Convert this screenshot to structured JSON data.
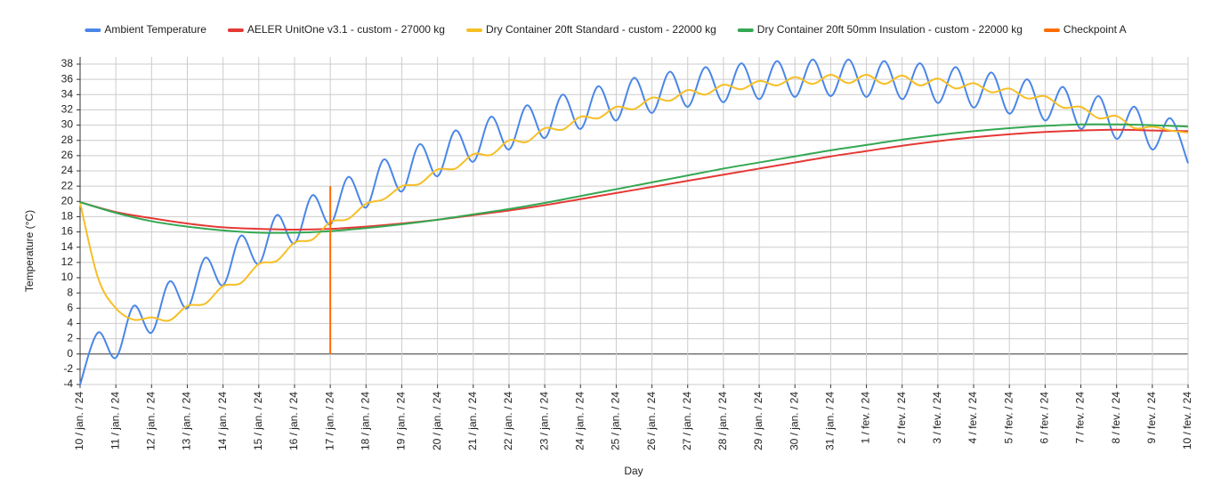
{
  "chart_data": {
    "type": "line",
    "x_label": "Day",
    "y_label": "Temperature (°C)",
    "xlim": [
      0,
      31
    ],
    "ylim": [
      -4,
      38
    ],
    "yticks": [
      -4,
      -2,
      0,
      2,
      4,
      6,
      8,
      10,
      12,
      14,
      16,
      18,
      20,
      22,
      24,
      26,
      28,
      30,
      32,
      34,
      36,
      38
    ],
    "xticks": [
      {
        "value": 0,
        "label": "10 / jan. / 24"
      },
      {
        "value": 1,
        "label": "11 / jan. / 24"
      },
      {
        "value": 2,
        "label": "12 / jan. / 24"
      },
      {
        "value": 3,
        "label": "13 / jan. / 24"
      },
      {
        "value": 4,
        "label": "14 / jan. / 24"
      },
      {
        "value": 5,
        "label": "15 / jan. / 24"
      },
      {
        "value": 6,
        "label": "16 / jan. / 24"
      },
      {
        "value": 7,
        "label": "17 / jan. / 24"
      },
      {
        "value": 8,
        "label": "18 / jan. / 24"
      },
      {
        "value": 9,
        "label": "19 / jan. / 24"
      },
      {
        "value": 10,
        "label": "20 / jan. / 24"
      },
      {
        "value": 11,
        "label": "21 / jan. / 24"
      },
      {
        "value": 12,
        "label": "22 / jan. / 24"
      },
      {
        "value": 13,
        "label": "23 / jan. / 24"
      },
      {
        "value": 14,
        "label": "24 / jan. / 24"
      },
      {
        "value": 15,
        "label": "25 / jan. / 24"
      },
      {
        "value": 16,
        "label": "26 / jan. / 24"
      },
      {
        "value": 17,
        "label": "27 / jan. / 24"
      },
      {
        "value": 18,
        "label": "28 / jan. / 24"
      },
      {
        "value": 19,
        "label": "29 / jan. / 24"
      },
      {
        "value": 20,
        "label": "30 / jan. / 24"
      },
      {
        "value": 21,
        "label": "31 / jan. / 24"
      },
      {
        "value": 22,
        "label": "1 / fev. / 24"
      },
      {
        "value": 23,
        "label": "2 / fev. / 24"
      },
      {
        "value": 24,
        "label": "3 / fev. / 24"
      },
      {
        "value": 25,
        "label": "4 / fev. / 24"
      },
      {
        "value": 26,
        "label": "5 / fev. / 24"
      },
      {
        "value": 27,
        "label": "6 / fev. / 24"
      },
      {
        "value": 28,
        "label": "7 / fev. / 24"
      },
      {
        "value": 29,
        "label": "8 / fev. / 24"
      },
      {
        "value": 30,
        "label": "9 / fev. / 24"
      },
      {
        "value": 31,
        "label": "10 / fev. / 24"
      }
    ],
    "grid": true,
    "legend": "top",
    "series": [
      {
        "name": "Ambient Temperature",
        "color": "#4a86e8",
        "x": [
          0,
          0.5,
          1,
          1.5,
          2,
          2.5,
          3,
          3.5,
          4,
          4.5,
          5,
          5.5,
          6,
          6.5,
          7,
          7.5,
          8,
          8.5,
          9,
          9.5,
          10,
          10.5,
          11,
          11.5,
          12,
          12.5,
          13,
          13.5,
          14,
          14.5,
          15,
          15.5,
          16,
          16.5,
          17,
          17.5,
          18,
          18.5,
          19,
          19.5,
          20,
          20.5,
          21,
          21.5,
          22,
          22.5,
          23,
          23.5,
          24,
          24.5,
          25,
          25.5,
          26,
          26.5,
          27,
          27.5,
          28,
          28.5,
          29,
          29.5,
          30,
          30.5,
          31
        ],
        "values": [
          -4,
          2.8,
          -0.5,
          6.3,
          2.8,
          9.5,
          6,
          12.6,
          9,
          15.5,
          11.8,
          18.2,
          14.5,
          20.8,
          17,
          23.2,
          19.2,
          25.5,
          21.3,
          27.5,
          23.3,
          29.3,
          25.2,
          31.1,
          26.8,
          32.6,
          28.3,
          34,
          29.5,
          35.1,
          30.6,
          36.2,
          31.6,
          37,
          32.4,
          37.6,
          33,
          38.1,
          33.4,
          38.4,
          33.7,
          38.6,
          33.8,
          38.6,
          33.7,
          38.4,
          33.4,
          38.1,
          32.9,
          37.6,
          32.3,
          36.9,
          31.5,
          36,
          30.6,
          35,
          29.5,
          33.8,
          28.2,
          32.4,
          26.8,
          30.9,
          25
        ]
      },
      {
        "name": "AELER UnitOne v3.1 - custom - 27000 kg",
        "color": "#e53935",
        "x": [
          0,
          1,
          2,
          3,
          4,
          5,
          6,
          7,
          8,
          9,
          10,
          11,
          12,
          13,
          14,
          15,
          16,
          17,
          18,
          19,
          20,
          21,
          22,
          23,
          24,
          25,
          26,
          27,
          28,
          29,
          30,
          31
        ],
        "values": [
          19.9,
          18.6,
          17.8,
          17.1,
          16.6,
          16.4,
          16.3,
          16.4,
          16.7,
          17.1,
          17.6,
          18.2,
          18.8,
          19.5,
          20.3,
          21.1,
          21.9,
          22.7,
          23.5,
          24.3,
          25.1,
          25.9,
          26.6,
          27.3,
          27.9,
          28.4,
          28.8,
          29.1,
          29.3,
          29.4,
          29.3,
          29.2
        ]
      },
      {
        "name": "Dry Container 20ft Standard - custom - 22000 kg",
        "color": "#f6bf26",
        "x": [
          0,
          0.5,
          1,
          1.5,
          2,
          2.5,
          3,
          3.5,
          4,
          4.5,
          5,
          5.5,
          6,
          6.5,
          7,
          7.5,
          8,
          8.5,
          9,
          9.5,
          10,
          10.5,
          11,
          11.5,
          12,
          12.5,
          13,
          13.5,
          14,
          14.5,
          15,
          15.5,
          16,
          16.5,
          17,
          17.5,
          18,
          18.5,
          19,
          19.5,
          20,
          20.5,
          21,
          21.5,
          22,
          22.5,
          23,
          23.5,
          24,
          24.5,
          25,
          25.5,
          26,
          26.5,
          27,
          27.5,
          28,
          28.5,
          29,
          29.5,
          30,
          30.5,
          31
        ],
        "values": [
          19.8,
          10,
          6,
          4.5,
          4.8,
          4.4,
          6.3,
          6.6,
          8.9,
          9.3,
          11.8,
          12.2,
          14.6,
          15,
          17.3,
          17.7,
          19.7,
          20.3,
          22,
          22.3,
          24.2,
          24.3,
          26.2,
          26.1,
          28,
          27.8,
          29.6,
          29.4,
          31.1,
          30.9,
          32.4,
          32.1,
          33.6,
          33.2,
          34.6,
          34,
          35.3,
          34.7,
          35.8,
          35.2,
          36.3,
          35.4,
          36.6,
          35.5,
          36.6,
          35.4,
          36.5,
          35.2,
          36.1,
          34.8,
          35.5,
          34.3,
          34.8,
          33.5,
          33.8,
          32.3,
          32.4,
          30.9,
          31.2,
          29.6,
          29.8,
          29.3,
          29
        ]
      },
      {
        "name": "Dry Container 20ft 50mm Insulation - custom - 22000 kg",
        "color": "#34a853",
        "x": [
          0,
          1,
          2,
          3,
          4,
          5,
          6,
          7,
          8,
          9,
          10,
          11,
          12,
          13,
          14,
          15,
          16,
          17,
          18,
          19,
          20,
          21,
          22,
          23,
          24,
          25,
          26,
          27,
          28,
          29,
          30,
          31
        ],
        "values": [
          19.9,
          18.5,
          17.4,
          16.7,
          16.2,
          15.9,
          15.9,
          16.1,
          16.5,
          17,
          17.6,
          18.3,
          19,
          19.8,
          20.7,
          21.6,
          22.5,
          23.4,
          24.3,
          25.1,
          25.9,
          26.7,
          27.4,
          28.1,
          28.7,
          29.2,
          29.6,
          29.9,
          30.1,
          30.1,
          30,
          29.8
        ]
      },
      {
        "name": "Checkpoint A",
        "color": "#ff6d01",
        "x": [
          7,
          7
        ],
        "values": [
          0,
          22
        ]
      }
    ]
  }
}
